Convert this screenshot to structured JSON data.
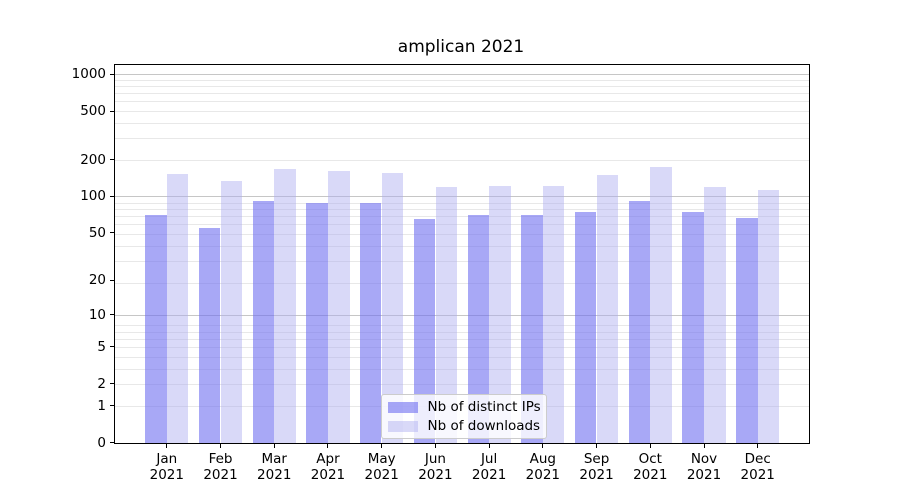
{
  "chart_data": {
    "type": "bar",
    "title": "amplican 2021",
    "categories": [
      "Jan",
      "Feb",
      "Mar",
      "Apr",
      "May",
      "Jun",
      "Jul",
      "Aug",
      "Sep",
      "Oct",
      "Nov",
      "Dec"
    ],
    "year_label": "2021",
    "series": [
      {
        "name": "Nb of distinct IPs",
        "color": "#a8a8f6",
        "color_rgba": "rgba(110,110,240,0.6)",
        "values": [
          70,
          55,
          92,
          88,
          88,
          65,
          70,
          70,
          74,
          92,
          74,
          67
        ]
      },
      {
        "name": "Nb of downloads",
        "color": "#d9d9f8",
        "color_rgba": "rgba(171,171,239,0.45)",
        "values": [
          154,
          134,
          167,
          161,
          157,
          120,
          121,
          121,
          151,
          176,
          119,
          113
        ]
      }
    ],
    "yticks": [
      0,
      1,
      2,
      5,
      10,
      20,
      50,
      100,
      200,
      500,
      1000
    ],
    "ylim": [
      0,
      1200
    ],
    "yscale": "log10(value+1)",
    "xlabel": "",
    "ylabel": "",
    "grid": true,
    "grid_minor_color": "#e8e8e8",
    "grid_major_color": "#c6c6c6",
    "axis_color": "#000000",
    "legend_position": "lower-center"
  }
}
